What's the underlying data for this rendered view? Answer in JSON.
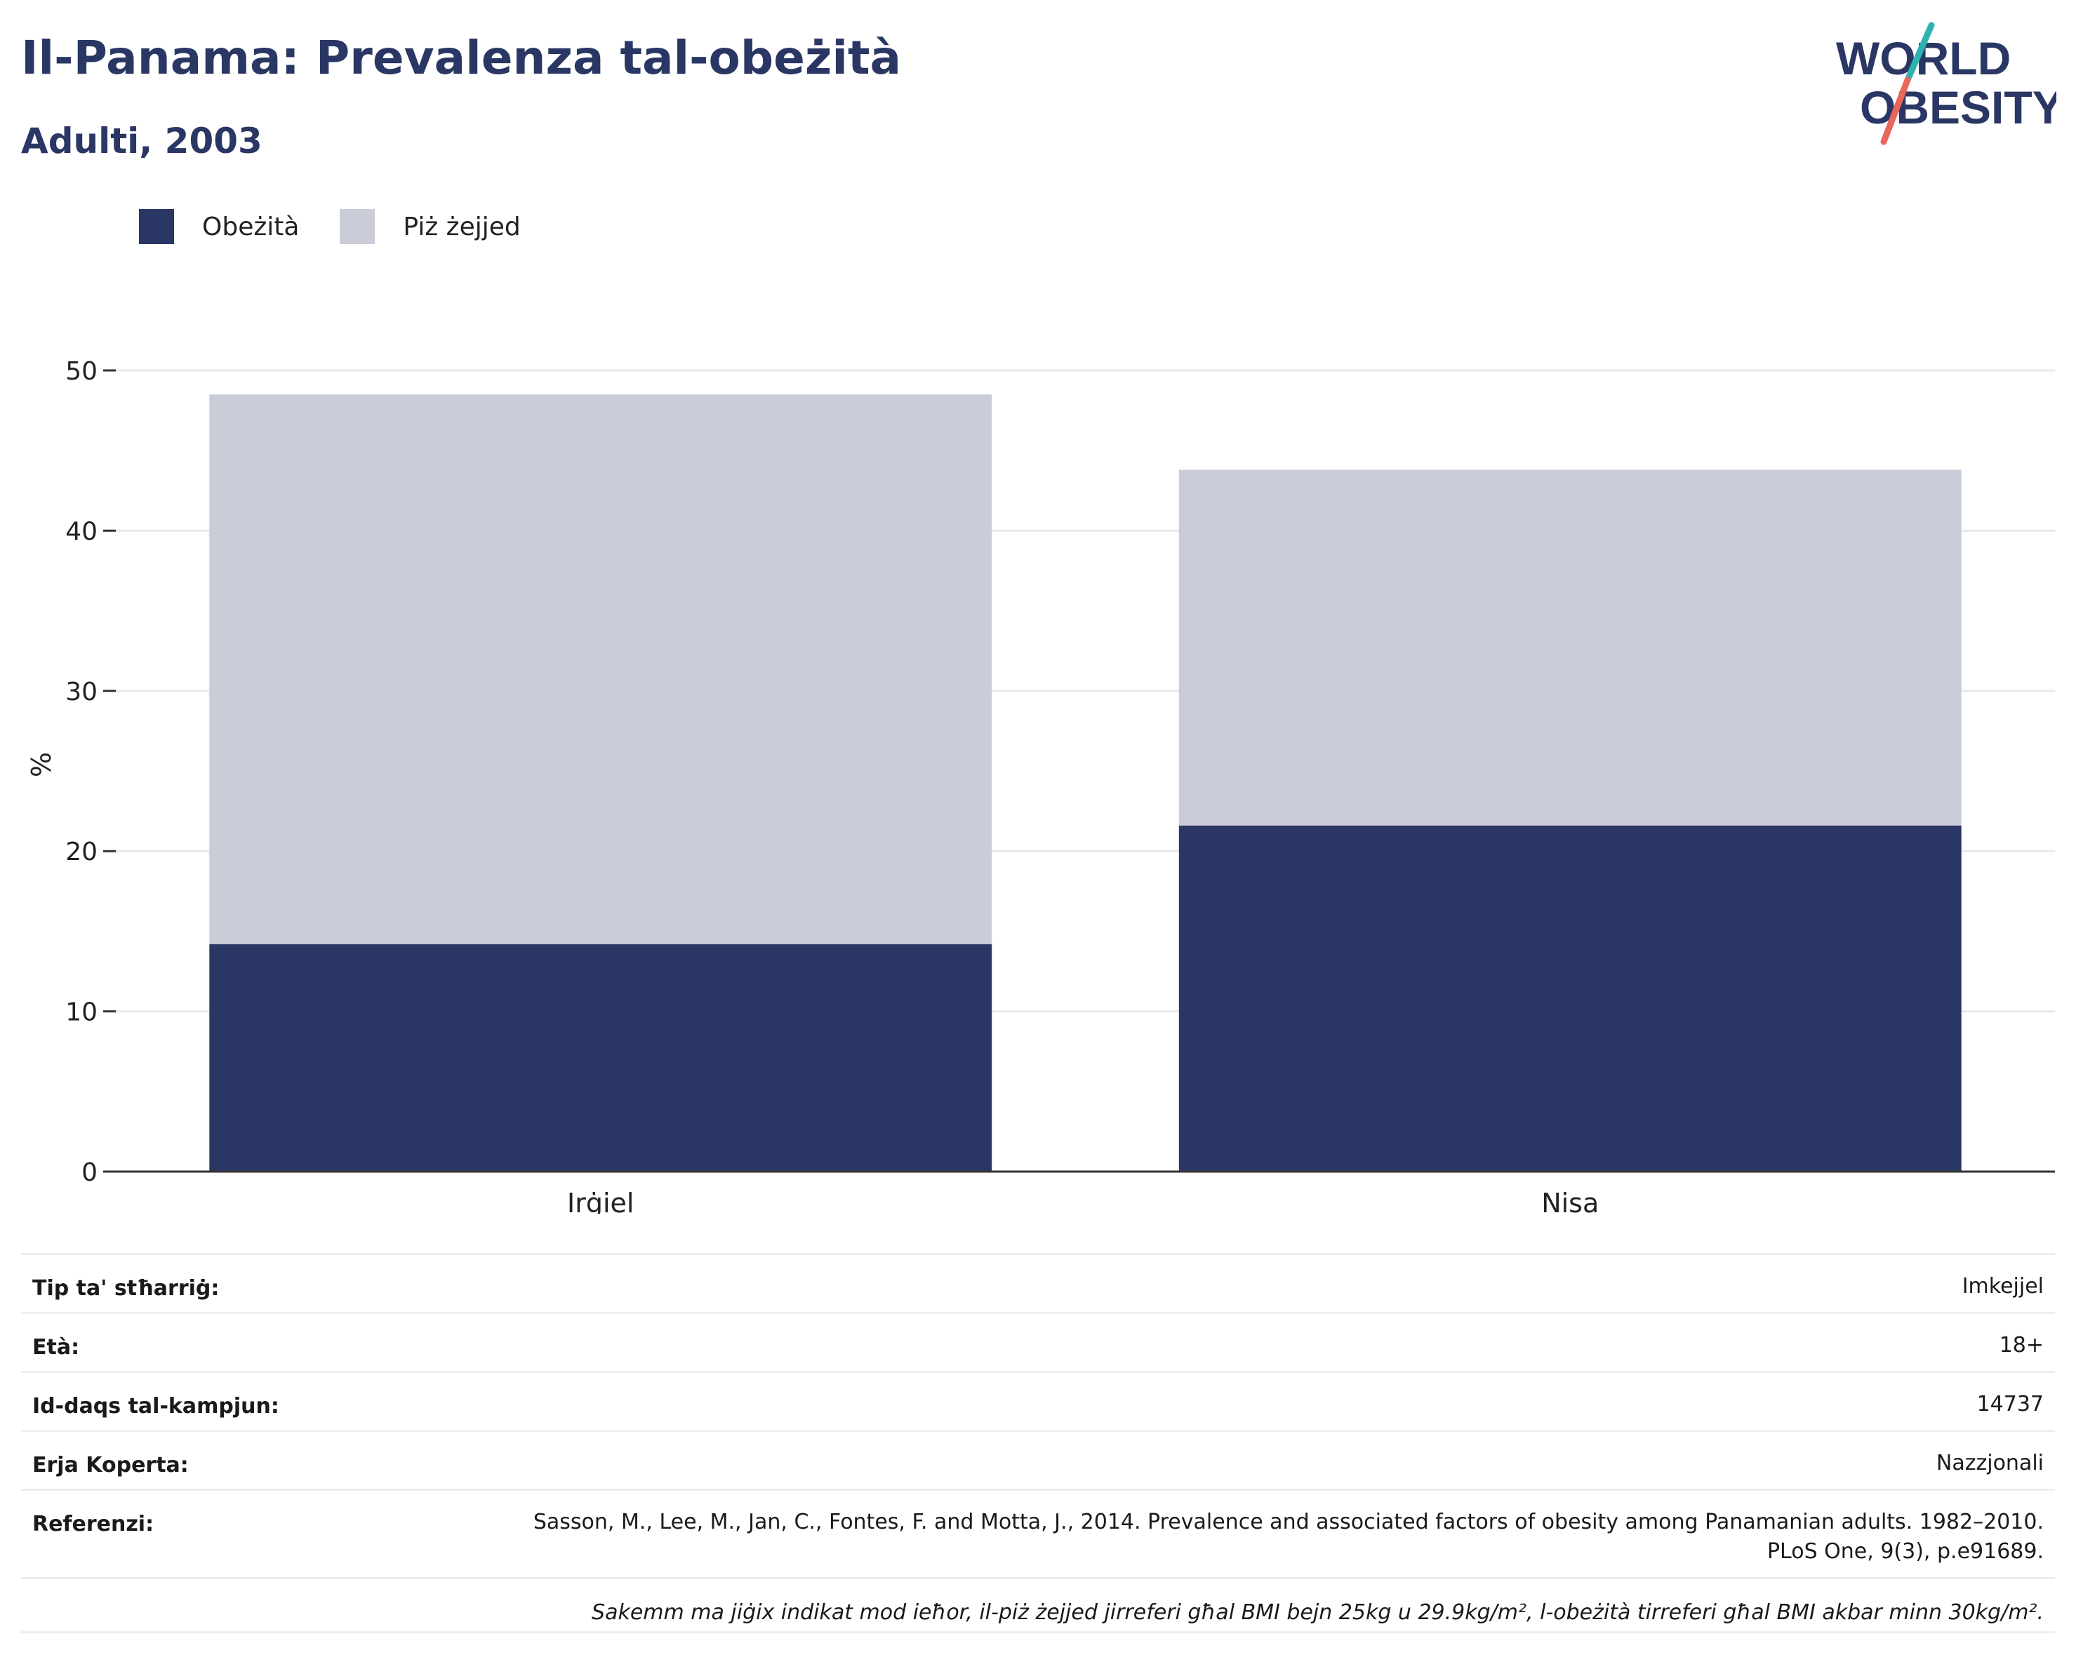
{
  "header": {
    "title": "Il-Panama: Prevalenza tal-obeżità",
    "subtitle": "Adulti, 2003"
  },
  "logo": {
    "line1": "WORLD",
    "line2": "OBESITY",
    "colors": {
      "text": "#2a3764",
      "teal": "#2fb3b0",
      "coral": "#e8675a"
    }
  },
  "legend": {
    "items": [
      {
        "label": "Obeżità",
        "color": "#2a3764"
      },
      {
        "label": "Piż żejjed",
        "color": "#cacdd8"
      }
    ]
  },
  "chart_data": {
    "type": "bar",
    "stacked": true,
    "categories": [
      "Irġiel",
      "Nisa"
    ],
    "series": [
      {
        "name": "Obeżità",
        "values": [
          14.2,
          21.6
        ],
        "color": "#2a3764"
      },
      {
        "name": "Piż żejjed",
        "values": [
          34.3,
          22.2
        ],
        "color": "#cacdd8"
      }
    ],
    "ylabel": "%",
    "ylim": [
      0,
      50
    ],
    "yticks": [
      "0",
      "10",
      "20",
      "30",
      "40",
      "50"
    ],
    "grid": true,
    "legend_position": "top-left"
  },
  "info": {
    "rows": [
      {
        "label": "Tip ta' stħarriġ:",
        "value": "Imkejjel"
      },
      {
        "label": "Età:",
        "value": "18+"
      },
      {
        "label": "Id-daqs tal-kampjun:",
        "value": "14737"
      },
      {
        "label": "Erja Koperta:",
        "value": "Nazzjonali"
      },
      {
        "label": "Referenzi:",
        "value": "Sasson, M., Lee, M., Jan, C., Fontes, F. and Motta, J., 2014. Prevalence and associated factors of obesity among Panamanian adults. 1982–2010. PLoS One, 9(3), p.e91689."
      }
    ],
    "note": "Sakemm ma jiġix indikat mod ieħor, il-piż żejjed jirreferi għal BMI bejn 25kg u 29.9kg/m², l-obeżità tirreferi għal BMI akbar minn 30kg/m²."
  }
}
